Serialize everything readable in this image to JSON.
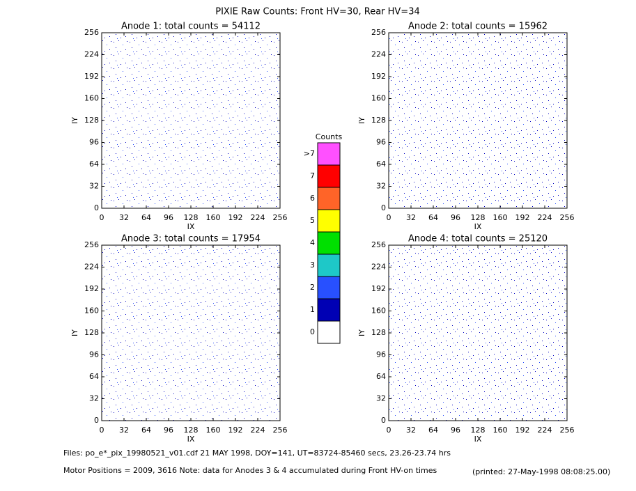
{
  "title": "PIXIE Raw Counts:  Front HV=30, Rear HV=34",
  "chart_data": [
    {
      "type": "heatmap",
      "title": "Anode 1: total counts = 54112",
      "xlabel": "IX",
      "ylabel": "IY",
      "xlim": [
        0,
        256
      ],
      "ylim": [
        0,
        256
      ],
      "xticks": [
        0,
        32,
        64,
        96,
        128,
        160,
        192,
        224,
        256
      ],
      "yticks": [
        0,
        32,
        64,
        96,
        128,
        160,
        192,
        224,
        256
      ]
    },
    {
      "type": "heatmap",
      "title": "Anode 2: total counts = 15962",
      "xlabel": "IX",
      "ylabel": "IY",
      "xlim": [
        0,
        256
      ],
      "ylim": [
        0,
        256
      ],
      "xticks": [
        0,
        32,
        64,
        96,
        128,
        160,
        192,
        224,
        256
      ],
      "yticks": [
        0,
        32,
        64,
        96,
        128,
        160,
        192,
        224,
        256
      ]
    },
    {
      "type": "heatmap",
      "title": "Anode 3: total counts = 17954",
      "xlabel": "IX",
      "ylabel": "IY",
      "xlim": [
        0,
        256
      ],
      "ylim": [
        0,
        256
      ],
      "xticks": [
        0,
        32,
        64,
        96,
        128,
        160,
        192,
        224,
        256
      ],
      "yticks": [
        0,
        32,
        64,
        96,
        128,
        160,
        192,
        224,
        256
      ]
    },
    {
      "type": "heatmap",
      "title": "Anode 4: total counts = 25120",
      "xlabel": "IX",
      "ylabel": "IY",
      "xlim": [
        0,
        256
      ],
      "ylim": [
        0,
        256
      ],
      "xticks": [
        0,
        32,
        64,
        96,
        128,
        160,
        192,
        224,
        256
      ],
      "yticks": [
        0,
        32,
        64,
        96,
        128,
        160,
        192,
        224,
        256
      ]
    }
  ],
  "colorbar": {
    "title": "Counts",
    "labels": [
      "0",
      "1",
      "2",
      "3",
      "4",
      "5",
      "6",
      "7",
      ">7"
    ],
    "colors": [
      "#ffffff",
      "#0000b4",
      "#2850ff",
      "#1ec8c8",
      "#00e000",
      "#ffff00",
      "#ff6428",
      "#ff0000",
      "#ff50ff"
    ]
  },
  "footer": {
    "files": "Files: po_e*_pix_19980521_v01.cdf    21 MAY 1998, DOY=141, UT=83724-85460 secs, 23.26-23.74 hrs",
    "motor": "Motor Positions = 2009, 3616    Note: data for Anodes 3 & 4 accumulated during Front HV-on times",
    "printed": "(printed: 27-May-1998 08:08:25.00)"
  }
}
